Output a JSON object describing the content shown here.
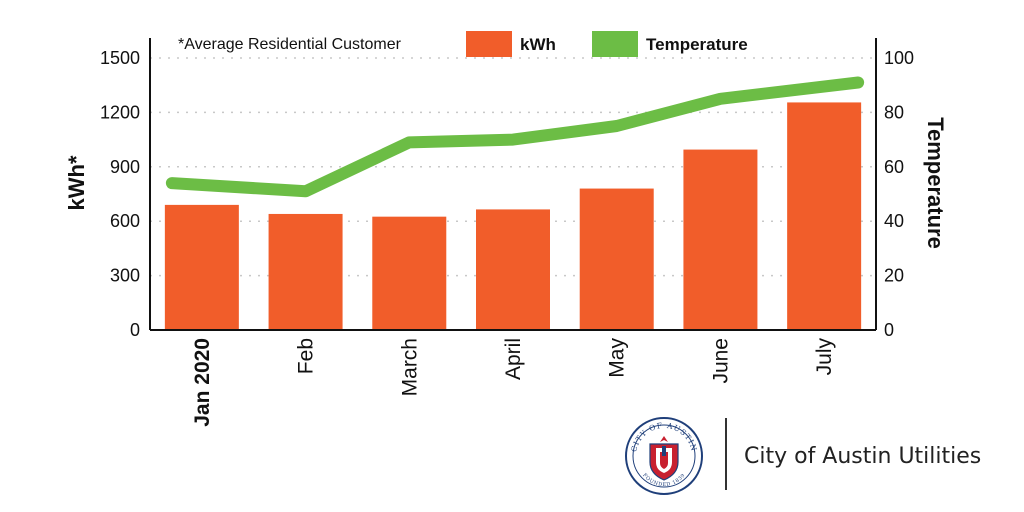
{
  "chart_data": {
    "type": "bar",
    "categories": [
      "Jan 2020",
      "Feb",
      "March",
      "April",
      "May",
      "June",
      "July"
    ],
    "series": [
      {
        "name": "kWh",
        "type": "bar",
        "axis": "left",
        "color": "#f15d2a",
        "values": [
          690,
          640,
          625,
          665,
          780,
          995,
          1255
        ]
      },
      {
        "name": "Temperature",
        "type": "line",
        "axis": "right",
        "color": "#6cbd45",
        "values": [
          54,
          51,
          69,
          70,
          75,
          85,
          91
        ]
      }
    ],
    "ylabel": "kWh*",
    "ylabel_right": "Temperature",
    "ylim": [
      0,
      1500
    ],
    "yticks": [
      0,
      300,
      600,
      900,
      1200,
      1500
    ],
    "ylim_right": [
      0,
      100
    ],
    "yticks_right": [
      0,
      20,
      40,
      60,
      80,
      100
    ],
    "grid": true,
    "legend_position": "top",
    "annotation": "*Average Residential Customer"
  },
  "branding": {
    "org_name": "City of Austin Utilities",
    "seal_top_text": "CITY OF AUSTIN",
    "seal_bottom_text": "FOUNDED 1839"
  }
}
